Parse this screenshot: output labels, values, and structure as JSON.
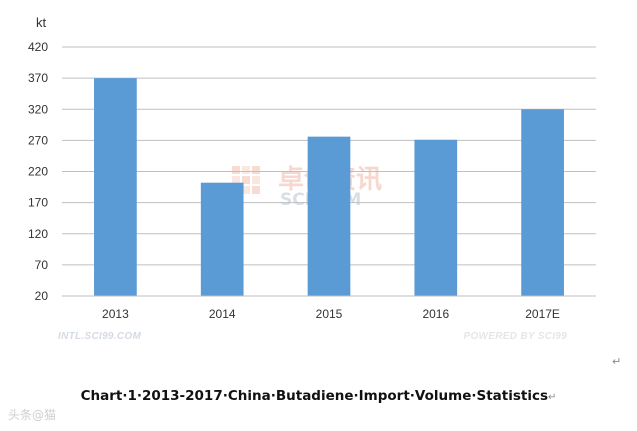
{
  "chart_data": {
    "type": "bar",
    "title": "",
    "xlabel": "",
    "ylabel": "kt",
    "categories": [
      "2013",
      "2014",
      "2015",
      "2016",
      "2017E"
    ],
    "values": [
      370,
      202,
      276,
      271,
      320
    ],
    "ylim": [
      20,
      420
    ],
    "yticks": [
      20,
      70,
      120,
      170,
      220,
      270,
      320,
      370,
      420
    ],
    "grid": true,
    "legend": "none",
    "bar_color": "#5b9bd5"
  },
  "watermark": {
    "main": "卓创资讯",
    "sub": "SCI.COM"
  },
  "footer": {
    "left": "INTL.SCI99.COM",
    "right": "POWERED BY SCI99"
  },
  "caption": {
    "text": "Chart·1·2013-2017·China·Butadiene·Import·Volume·Statistics",
    "return_mark": "↵"
  },
  "corner_logo": "头条@猫"
}
